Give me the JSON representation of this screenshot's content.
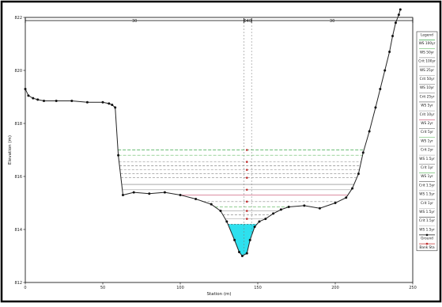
{
  "chart_data": {
    "type": "line",
    "xlabel": "Station (m)",
    "ylabel": "Elevation (m)",
    "xlim": [
      0,
      250
    ],
    "ylim": [
      812,
      822
    ],
    "x_ticks": [
      "0",
      "50",
      "100",
      "150",
      "200",
      "250"
    ],
    "y_ticks": [
      "812",
      "814",
      "816",
      "818",
      "820",
      "822"
    ],
    "reach_labels": [
      "30",
      "040",
      "30"
    ],
    "bank_stations": [
      141,
      146
    ],
    "ground": {
      "name": "Ground",
      "x": [
        0,
        2,
        5,
        8,
        12,
        20,
        30,
        40,
        50,
        54,
        56,
        58,
        60,
        63,
        70,
        80,
        90,
        100,
        110,
        120,
        126,
        130,
        135,
        138,
        140,
        143,
        145,
        148,
        151,
        155,
        160,
        165,
        170,
        180,
        190,
        200,
        207,
        211,
        215,
        218,
        222,
        226,
        229,
        232,
        235,
        237,
        239,
        241,
        242
      ],
      "y": [
        819.3,
        819.05,
        818.95,
        818.9,
        818.85,
        818.85,
        818.85,
        818.8,
        818.8,
        818.75,
        818.7,
        818.6,
        816.8,
        815.3,
        815.4,
        815.35,
        815.4,
        815.3,
        815.15,
        814.95,
        814.7,
        814.3,
        813.6,
        813.15,
        813.0,
        813.1,
        813.6,
        814.1,
        814.3,
        814.4,
        814.6,
        814.75,
        814.85,
        814.9,
        814.8,
        815.0,
        815.2,
        815.55,
        816.1,
        816.9,
        817.7,
        818.6,
        819.3,
        820.0,
        820.7,
        821.3,
        821.8,
        822.1,
        822.3
      ]
    },
    "water_levels": [
      {
        "name": "WS 100yr",
        "value": 817.0,
        "color": "#3aa84a",
        "dash": "4,2"
      },
      {
        "name": "WS 50yr",
        "value": 816.8,
        "color": "#66bb66",
        "dash": "4,2"
      },
      {
        "name": "Crit 100yr",
        "value": 816.55,
        "color": "#999999",
        "dash": "3,2"
      },
      {
        "name": "WS 25yr",
        "value": 816.4,
        "color": "#888888",
        "dash": "3,2"
      },
      {
        "name": "Crit 50yr",
        "value": 816.25,
        "color": "#aaaaaa",
        "dash": "3,2"
      },
      {
        "name": "WS 10yr",
        "value": 816.1,
        "color": "#999999",
        "dash": "3,2"
      },
      {
        "name": "Crit 25yr",
        "value": 815.95,
        "color": "#888888",
        "dash": "3,2"
      },
      {
        "name": "WS 5yr",
        "value": 815.7,
        "color": "#777777",
        "dash": ""
      },
      {
        "name": "Crit 10yr",
        "value": 815.5,
        "color": "#b0b0b0",
        "dash": ""
      },
      {
        "name": "WS 2yr",
        "value": 815.3,
        "color": "#c84a6a",
        "dash": ""
      },
      {
        "name": "Crit 5yr",
        "value": 815.05,
        "color": "#888888",
        "dash": "3,2"
      },
      {
        "name": "WS 1yr",
        "value": 814.85,
        "color": "#6fbf6f",
        "dash": "4,2"
      },
      {
        "name": "Crit 2yr",
        "value": 814.7,
        "color": "#999999",
        "dash": ""
      },
      {
        "name": "Crit 1yr",
        "value": 814.55,
        "color": "#777777",
        "dash": "3,2"
      },
      {
        "name": "WS 1.5yr",
        "value": 814.4,
        "color": "#bbbbbb",
        "dash": ""
      },
      {
        "name": "Crit 1.5yr",
        "value": 814.2,
        "color": "#555555",
        "dash": "2,2"
      }
    ],
    "filled_level": {
      "value": 814.2,
      "color": "#2ee0ee"
    },
    "legend": {
      "title": "Legend",
      "placement": "right",
      "entries": [
        "WS 100yr",
        "WS 50yr",
        "Crit 100yr",
        "WS 25yr",
        "Crit 50yr",
        "WS 10yr",
        "Crit 25yr",
        "WS 5yr",
        "Crit 10yr",
        "WS 2yr",
        "Crit 5yr",
        "WS 1yr",
        "Crit 2yr",
        "WS 1.5yr",
        "Crit 1yr",
        "WS 1yr",
        "Crit 1.5yr",
        "WS 1.5yr",
        "Crit 1yr",
        "WS 1.5yr",
        "Crit 1.5yr",
        "WS 1.5yr",
        "Ground",
        "Bank Sta"
      ]
    }
  }
}
